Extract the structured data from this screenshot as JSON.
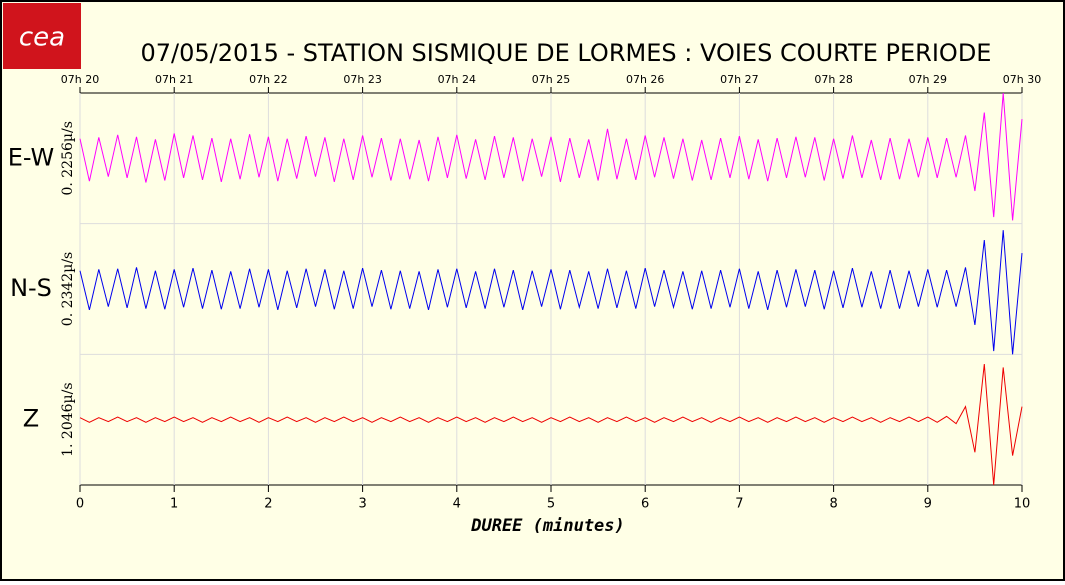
{
  "chart_data": {
    "type": "line",
    "logo": "cea",
    "title": "07/05/2015  -  STATION SISMIQUE DE LORMES : VOIES COURTE PERIODE",
    "xlabel": "DUREE (minutes)",
    "xlim": [
      0,
      10
    ],
    "xticks": [
      0,
      1,
      2,
      3,
      4,
      5,
      6,
      7,
      8,
      9,
      10
    ],
    "top_ticks": [
      {
        "value": 0,
        "label": "07h 20"
      },
      {
        "value": 1,
        "label": "07h 21"
      },
      {
        "value": 2,
        "label": "07h 22"
      },
      {
        "value": 3,
        "label": "07h 23"
      },
      {
        "value": 4,
        "label": "07h 24"
      },
      {
        "value": 5,
        "label": "07h 25"
      },
      {
        "value": 6,
        "label": "07h 26"
      },
      {
        "value": 7,
        "label": "07h 27"
      },
      {
        "value": 8,
        "label": "07h 28"
      },
      {
        "value": 9,
        "label": "07h 29"
      },
      {
        "value": 10,
        "label": "07h 30"
      }
    ],
    "ylim": [
      -1,
      1
    ],
    "grid": true,
    "x": [
      0,
      0.1,
      0.2,
      0.3,
      0.4,
      0.5,
      0.6,
      0.7,
      0.8,
      0.9,
      1,
      1.1,
      1.2,
      1.3,
      1.4,
      1.5,
      1.6,
      1.7,
      1.8,
      1.9,
      2,
      2.1,
      2.2,
      2.3,
      2.4,
      2.5,
      2.6,
      2.7,
      2.8,
      2.9,
      3,
      3.1,
      3.2,
      3.3,
      3.4,
      3.5,
      3.6,
      3.7,
      3.8,
      3.9,
      4,
      4.1,
      4.2,
      4.3,
      4.4,
      4.5,
      4.6,
      4.7,
      4.8,
      4.9,
      5,
      5.1,
      5.2,
      5.3,
      5.4,
      5.5,
      5.6,
      5.7,
      5.8,
      5.9,
      6,
      6.1,
      6.2,
      6.3,
      6.4,
      6.5,
      6.6,
      6.7,
      6.8,
      6.9,
      7,
      7.1,
      7.2,
      7.3,
      7.4,
      7.5,
      7.6,
      7.7,
      7.8,
      7.9,
      8,
      8.1,
      8.2,
      8.3,
      8.4,
      8.5,
      8.6,
      8.7,
      8.8,
      8.9,
      9,
      9.1,
      9.2,
      9.3,
      9.4,
      9.5,
      9.6,
      9.7,
      9.8,
      9.9,
      10
    ],
    "series": [
      {
        "name": "E-W",
        "color": "#ff00ff",
        "scale_label": "0. 2256µ/s",
        "values": [
          0.3,
          -0.35,
          0.32,
          -0.28,
          0.36,
          -0.3,
          0.33,
          -0.37,
          0.29,
          -0.34,
          0.38,
          -0.3,
          0.35,
          -0.33,
          0.31,
          -0.36,
          0.3,
          -0.32,
          0.37,
          -0.29,
          0.33,
          -0.35,
          0.3,
          -0.31,
          0.34,
          -0.28,
          0.32,
          -0.36,
          0.3,
          -0.33,
          0.35,
          -0.29,
          0.31,
          -0.34,
          0.3,
          -0.32,
          0.28,
          -0.35,
          0.33,
          -0.3,
          0.36,
          -0.31,
          0.29,
          -0.33,
          0.34,
          -0.3,
          0.32,
          -0.35,
          0.3,
          -0.28,
          0.33,
          -0.36,
          0.31,
          -0.3,
          0.29,
          -0.34,
          0.45,
          -0.32,
          0.3,
          -0.33,
          0.35,
          -0.29,
          0.32,
          -0.31,
          0.3,
          -0.34,
          0.28,
          -0.33,
          0.31,
          -0.3,
          0.34,
          -0.32,
          0.29,
          -0.35,
          0.31,
          -0.3,
          0.33,
          -0.29,
          0.32,
          -0.34,
          0.3,
          -0.31,
          0.35,
          -0.3,
          0.28,
          -0.33,
          0.31,
          -0.32,
          0.3,
          -0.29,
          0.32,
          -0.3,
          0.31,
          -0.29,
          0.35,
          -0.5,
          0.7,
          -0.9,
          1.0,
          -0.95,
          0.6
        ]
      },
      {
        "name": "N-S",
        "color": "#0000ee",
        "scale_label": "0. 2342µ/s",
        "values": [
          0.28,
          -0.32,
          0.3,
          -0.27,
          0.31,
          -0.29,
          0.33,
          -0.3,
          0.28,
          -0.31,
          0.3,
          -0.28,
          0.32,
          -0.3,
          0.29,
          -0.31,
          0.27,
          -0.3,
          0.31,
          -0.28,
          0.3,
          -0.32,
          0.28,
          -0.29,
          0.31,
          -0.27,
          0.3,
          -0.31,
          0.28,
          -0.3,
          0.32,
          -0.27,
          0.29,
          -0.31,
          0.28,
          -0.3,
          0.27,
          -0.32,
          0.3,
          -0.28,
          0.31,
          -0.29,
          0.27,
          -0.3,
          0.31,
          -0.28,
          0.29,
          -0.32,
          0.28,
          -0.27,
          0.3,
          -0.31,
          0.29,
          -0.28,
          0.27,
          -0.3,
          0.31,
          -0.29,
          0.28,
          -0.3,
          0.32,
          -0.27,
          0.29,
          -0.28,
          0.27,
          -0.31,
          0.28,
          -0.3,
          0.29,
          -0.28,
          0.31,
          -0.3,
          0.27,
          -0.32,
          0.29,
          -0.28,
          0.3,
          -0.27,
          0.29,
          -0.31,
          0.28,
          -0.29,
          0.32,
          -0.28,
          0.27,
          -0.3,
          0.29,
          -0.3,
          0.28,
          -0.27,
          0.3,
          -0.28,
          0.29,
          -0.27,
          0.33,
          -0.55,
          0.75,
          -0.95,
          0.9,
          -1.0,
          0.55
        ]
      },
      {
        "name": "Z",
        "color": "#ee0000",
        "scale_label": "1. 2046µ/s",
        "values": [
          0.03,
          -0.04,
          0.03,
          -0.03,
          0.04,
          -0.03,
          0.03,
          -0.04,
          0.03,
          -0.03,
          0.04,
          -0.03,
          0.03,
          -0.04,
          0.03,
          -0.03,
          0.04,
          -0.03,
          0.03,
          -0.04,
          0.03,
          -0.03,
          0.04,
          -0.03,
          0.03,
          -0.04,
          0.03,
          -0.03,
          0.04,
          -0.03,
          0.03,
          -0.04,
          0.03,
          -0.03,
          0.04,
          -0.03,
          0.03,
          -0.04,
          0.03,
          -0.03,
          0.04,
          -0.03,
          0.03,
          -0.04,
          0.03,
          -0.03,
          0.04,
          -0.03,
          0.03,
          -0.04,
          0.03,
          -0.03,
          0.04,
          -0.03,
          0.03,
          -0.04,
          0.03,
          -0.03,
          0.04,
          -0.03,
          0.03,
          -0.04,
          0.03,
          -0.03,
          0.04,
          -0.03,
          0.03,
          -0.04,
          0.03,
          -0.03,
          0.04,
          -0.03,
          0.03,
          -0.04,
          0.03,
          -0.03,
          0.04,
          -0.03,
          0.03,
          -0.04,
          0.03,
          -0.03,
          0.04,
          -0.03,
          0.03,
          -0.04,
          0.03,
          -0.03,
          0.04,
          -0.03,
          0.04,
          -0.04,
          0.05,
          -0.06,
          0.2,
          -0.5,
          0.85,
          -1.0,
          0.8,
          -0.55,
          0.2
        ]
      }
    ]
  }
}
